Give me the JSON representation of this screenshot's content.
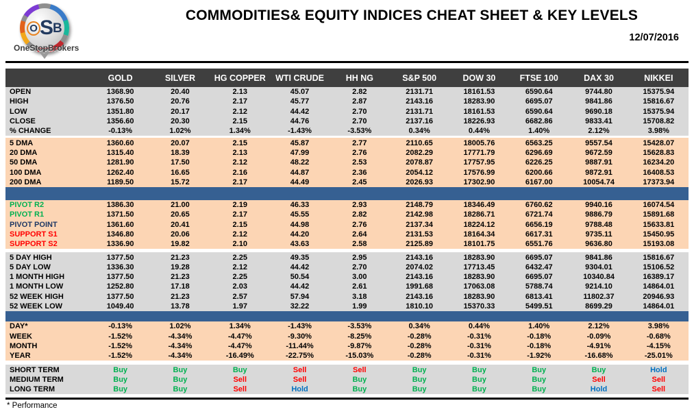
{
  "logo": {
    "acronym_o": "O",
    "acronym_s": "S",
    "acronym_b": "B",
    "brand": "OneStopBrokers"
  },
  "header": {
    "title": "COMMODITIES& EQUITY INDICES CHEAT SHEET & KEY LEVELS",
    "date": "12/07/2016"
  },
  "table": {
    "columns": [
      "GOLD",
      "SILVER",
      "HG COPPER",
      "WTI CRUDE",
      "HH NG",
      "S&P 500",
      "DOW 30",
      "FTSE 100",
      "DAX 30",
      "NIKKEI"
    ],
    "sections": [
      {
        "id": "ohlc",
        "bg": "gray",
        "divider_after": "gap3",
        "rows": [
          {
            "label": "OPEN",
            "values": [
              "1368.90",
              "20.40",
              "2.13",
              "45.07",
              "2.82",
              "2131.71",
              "18161.53",
              "6590.64",
              "9744.80",
              "15375.94"
            ]
          },
          {
            "label": "HIGH",
            "values": [
              "1376.50",
              "20.76",
              "2.17",
              "45.77",
              "2.87",
              "2143.16",
              "18283.90",
              "6695.07",
              "9841.86",
              "15816.67"
            ]
          },
          {
            "label": "LOW",
            "values": [
              "1351.80",
              "20.17",
              "2.12",
              "44.42",
              "2.70",
              "2131.71",
              "18161.53",
              "6590.64",
              "9690.18",
              "15375.94"
            ]
          },
          {
            "label": "CLOSE",
            "values": [
              "1356.60",
              "20.30",
              "2.15",
              "44.76",
              "2.70",
              "2137.16",
              "18226.93",
              "6682.86",
              "9833.41",
              "15708.82"
            ]
          },
          {
            "label": "% CHANGE",
            "values": [
              "-0.13%",
              "1.02%",
              "1.34%",
              "-1.43%",
              "-3.53%",
              "0.34%",
              "0.44%",
              "1.40%",
              "2.12%",
              "3.98%"
            ]
          }
        ]
      },
      {
        "id": "dma",
        "bg": "peach",
        "divider_after": "bar",
        "rows": [
          {
            "label": "5 DMA",
            "values": [
              "1360.60",
              "20.07",
              "2.15",
              "45.87",
              "2.77",
              "2110.65",
              "18005.76",
              "6563.25",
              "9557.54",
              "15428.07"
            ]
          },
          {
            "label": "20 DMA",
            "values": [
              "1315.40",
              "18.39",
              "2.13",
              "47.99",
              "2.76",
              "2082.29",
              "17771.79",
              "6296.69",
              "9672.59",
              "15628.83"
            ]
          },
          {
            "label": "50 DMA",
            "values": [
              "1281.90",
              "17.50",
              "2.12",
              "48.22",
              "2.53",
              "2078.87",
              "17757.95",
              "6226.25",
              "9887.91",
              "16234.20"
            ]
          },
          {
            "label": "100 DMA",
            "values": [
              "1262.40",
              "16.65",
              "2.16",
              "44.87",
              "2.36",
              "2054.12",
              "17576.99",
              "6200.66",
              "9872.91",
              "16408.53"
            ]
          },
          {
            "label": "200 DMA",
            "values": [
              "1189.50",
              "15.72",
              "2.17",
              "44.49",
              "2.45",
              "2026.93",
              "17302.90",
              "6167.00",
              "10054.74",
              "17373.94"
            ]
          }
        ]
      },
      {
        "id": "pivots",
        "bg": "peach",
        "divider_after": "gap5",
        "rows": [
          {
            "label": "PIVOT R2",
            "label_color": "green",
            "values": [
              "1386.30",
              "21.00",
              "2.19",
              "46.33",
              "2.93",
              "2148.79",
              "18346.49",
              "6760.62",
              "9940.16",
              "16074.54"
            ]
          },
          {
            "label": "PIVOT R1",
            "label_color": "green",
            "values": [
              "1371.50",
              "20.65",
              "2.17",
              "45.55",
              "2.82",
              "2142.98",
              "18286.71",
              "6721.74",
              "9886.79",
              "15891.68"
            ]
          },
          {
            "label": "PIVOT POINT",
            "label_color": "navy",
            "values": [
              "1361.60",
              "20.41",
              "2.15",
              "44.98",
              "2.76",
              "2137.34",
              "18224.12",
              "6656.19",
              "9788.48",
              "15633.81"
            ]
          },
          {
            "label": "SUPPORT S1",
            "label_color": "red",
            "values": [
              "1346.80",
              "20.06",
              "2.12",
              "44.20",
              "2.64",
              "2131.53",
              "18164.34",
              "6617.31",
              "9735.11",
              "15450.95"
            ]
          },
          {
            "label": "SUPPORT S2",
            "label_color": "red",
            "values": [
              "1336.90",
              "19.82",
              "2.10",
              "43.63",
              "2.58",
              "2125.89",
              "18101.75",
              "6551.76",
              "9636.80",
              "15193.08"
            ]
          }
        ]
      },
      {
        "id": "ranges",
        "bg": "gray",
        "divider_after": "bar-thin",
        "rows": [
          {
            "label": "5 DAY HIGH",
            "values": [
              "1377.50",
              "21.23",
              "2.25",
              "49.35",
              "2.95",
              "2143.16",
              "18283.90",
              "6695.07",
              "9841.86",
              "15816.67"
            ]
          },
          {
            "label": "5 DAY LOW",
            "values": [
              "1336.30",
              "19.28",
              "2.12",
              "44.42",
              "2.70",
              "2074.02",
              "17713.45",
              "6432.47",
              "9304.01",
              "15106.52"
            ]
          },
          {
            "label": "1 MONTH HIGH",
            "values": [
              "1377.50",
              "21.23",
              "2.25",
              "50.54",
              "3.00",
              "2143.16",
              "18283.90",
              "6695.07",
              "10340.84",
              "16389.17"
            ]
          },
          {
            "label": "1 MONTH LOW",
            "values": [
              "1252.80",
              "17.18",
              "2.03",
              "44.42",
              "2.61",
              "1991.68",
              "17063.08",
              "5788.74",
              "9214.10",
              "14864.01"
            ]
          },
          {
            "label": "52 WEEK HIGH",
            "values": [
              "1377.50",
              "21.23",
              "2.57",
              "57.94",
              "3.18",
              "2143.16",
              "18283.90",
              "6813.41",
              "11802.37",
              "20946.93"
            ]
          },
          {
            "label": "52 WEEK LOW",
            "values": [
              "1049.40",
              "13.78",
              "1.97",
              "32.22",
              "1.99",
              "1810.10",
              "15370.33",
              "5499.51",
              "8699.29",
              "14864.01"
            ]
          }
        ]
      },
      {
        "id": "performance",
        "bg": "peach",
        "divider_after": "gap6",
        "rows": [
          {
            "label": "DAY*",
            "values": [
              "-0.13%",
              "1.02%",
              "1.34%",
              "-1.43%",
              "-3.53%",
              "0.34%",
              "0.44%",
              "1.40%",
              "2.12%",
              "3.98%"
            ]
          },
          {
            "label": "WEEK",
            "values": [
              "-1.52%",
              "-4.34%",
              "-4.47%",
              "-9.30%",
              "-8.25%",
              "-0.28%",
              "-0.31%",
              "-0.18%",
              "-0.09%",
              "-0.68%"
            ]
          },
          {
            "label": "MONTH",
            "values": [
              "-1.52%",
              "-4.34%",
              "-4.47%",
              "-11.44%",
              "-9.87%",
              "-0.28%",
              "-0.31%",
              "-0.18%",
              "-4.91%",
              "-4.15%"
            ]
          },
          {
            "label": "YEAR",
            "values": [
              "-1.52%",
              "-4.34%",
              "-16.49%",
              "-22.75%",
              "-15.03%",
              "-0.28%",
              "-0.31%",
              "-1.92%",
              "-16.68%",
              "-25.01%"
            ]
          }
        ]
      },
      {
        "id": "signals",
        "bg": "gray",
        "type": "signals",
        "divider_after": "none",
        "rows": [
          {
            "label": "SHORT TERM",
            "values": [
              "Buy",
              "Buy",
              "Buy",
              "Sell",
              "Sell",
              "Buy",
              "Buy",
              "Buy",
              "Buy",
              "Hold"
            ]
          },
          {
            "label": "MEDIUM TERM",
            "values": [
              "Buy",
              "Buy",
              "Sell",
              "Sell",
              "Buy",
              "Buy",
              "Buy",
              "Buy",
              "Sell",
              "Sell"
            ]
          },
          {
            "label": "LONG TERM",
            "values": [
              "Buy",
              "Buy",
              "Sell",
              "Hold",
              "Buy",
              "Buy",
              "Buy",
              "Buy",
              "Hold",
              "Sell"
            ]
          }
        ]
      }
    ]
  },
  "footnote": "* Performance",
  "colors": {
    "header_bg": "#3f3f3f",
    "row_gray": "#d9d9d9",
    "row_peach": "#fcd5b4",
    "divider_blue": "#366092",
    "buy_green": "#00b050",
    "sell_red": "#ff0000",
    "hold_blue": "#0070c0",
    "pivot_navy": "#1f3864"
  }
}
